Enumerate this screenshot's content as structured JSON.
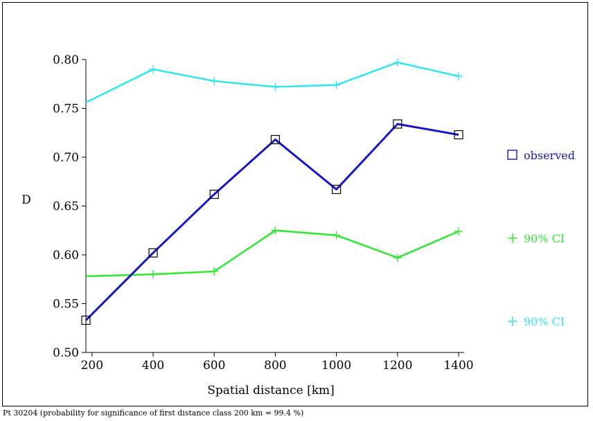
{
  "chart_data": {
    "type": "line",
    "xlabel": "Spatial distance [km]",
    "ylabel": "D",
    "xlim": [
      180,
      1400
    ],
    "ylim": [
      0.5,
      0.8
    ],
    "x_ticks": [
      200,
      400,
      600,
      800,
      1000,
      1200,
      1400
    ],
    "y_ticks": [
      0.5,
      0.55,
      0.6,
      0.65,
      0.7,
      0.75,
      0.8
    ],
    "y_tick_labels": [
      "0.50",
      "0.55",
      "0.60",
      "0.65",
      "0.70",
      "0.75",
      "0.80"
    ],
    "legend_placement": "right",
    "series": [
      {
        "name": "observed",
        "marker": "square",
        "color": "#1515c8",
        "x": [
          180,
          400,
          600,
          800,
          1000,
          1200,
          1400
        ],
        "y": [
          0.533,
          0.602,
          0.662,
          0.718,
          0.667,
          0.734,
          0.723
        ]
      },
      {
        "name": "90% CI",
        "marker": "plus",
        "color": "#33e833",
        "x": [
          180,
          400,
          600,
          800,
          1000,
          1200,
          1400
        ],
        "y": [
          0.578,
          0.58,
          0.583,
          0.625,
          0.62,
          0.597,
          0.624
        ]
      },
      {
        "name": "90% CI",
        "marker": "plus",
        "color": "#33e5f5",
        "x": [
          180,
          400,
          600,
          800,
          1000,
          1200,
          1400
        ],
        "y": [
          0.756,
          0.79,
          0.778,
          0.772,
          0.774,
          0.797,
          0.783
        ]
      }
    ]
  },
  "footnote": "Pt 30204 (probability for significance of first distance class 200 km = 99.4 %)"
}
